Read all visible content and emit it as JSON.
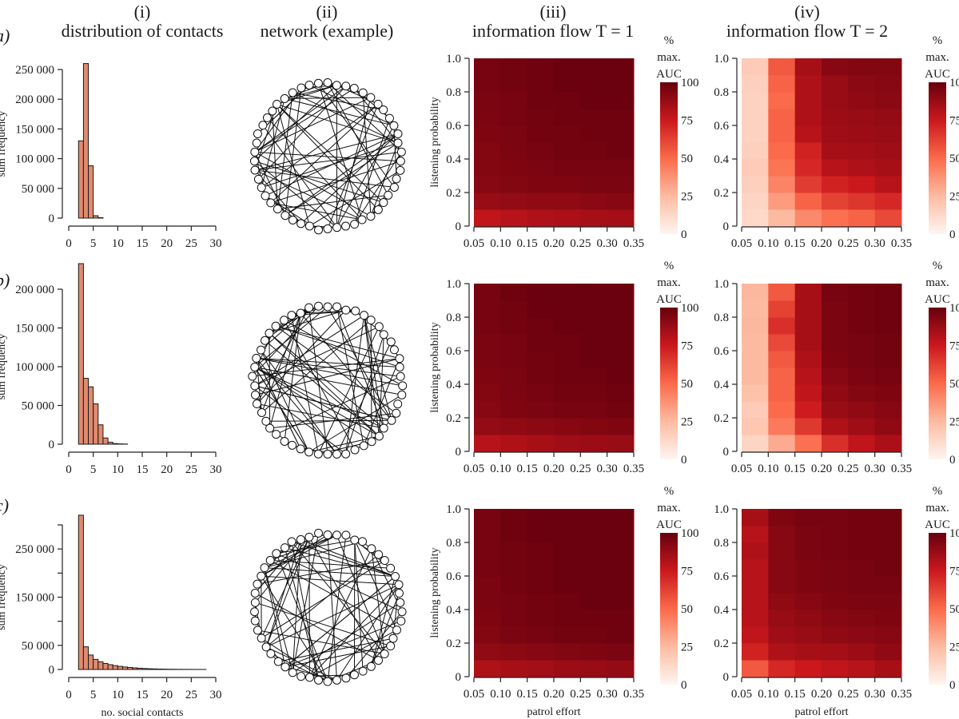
{
  "figure": {
    "column_headers": [
      {
        "numeral": "(i)",
        "title": "distribution of contacts"
      },
      {
        "numeral": "(ii)",
        "title": "network (example)"
      },
      {
        "numeral": "(iii)",
        "title": "information flow T = 1"
      },
      {
        "numeral": "(iv)",
        "title": "information flow T = 2"
      }
    ],
    "row_labels": [
      "a)",
      "b)",
      "c)"
    ],
    "colorbar": {
      "title_lines": [
        "%",
        "max.",
        "AUC"
      ],
      "ticks": [
        "100",
        "75",
        "50",
        "25",
        "0"
      ]
    },
    "colors": {
      "bar_fill": "#e08a6e",
      "axis": "#222222"
    }
  },
  "chart_data": [
    {
      "panel": "a-i",
      "type": "bar",
      "title": "distribution of contacts",
      "xlabel": "",
      "ylabel": "sum frequency",
      "xlim": [
        0,
        30
      ],
      "ylim": [
        0,
        250000
      ],
      "xticks": [
        "0",
        "5",
        "10",
        "15",
        "20",
        "25",
        "30"
      ],
      "yticks": [
        "0",
        "50 000",
        "100 000",
        "150 000",
        "200 000",
        "250 000"
      ],
      "bins_start": 2,
      "values": [
        130000,
        260000,
        88000,
        4000,
        800
      ]
    },
    {
      "panel": "b-i",
      "type": "bar",
      "title": "",
      "xlabel": "",
      "ylabel": "sum frequency",
      "xlim": [
        0,
        30
      ],
      "ylim": [
        0,
        200000
      ],
      "xticks": [
        "0",
        "5",
        "10",
        "15",
        "20",
        "25",
        "30"
      ],
      "yticks": [
        "0",
        "50 000",
        "100 000",
        "150 000",
        "200 000"
      ],
      "bins_start": 2,
      "values": [
        233000,
        85000,
        74000,
        52000,
        25000,
        8000,
        2500,
        800,
        400,
        200
      ]
    },
    {
      "panel": "c-i",
      "type": "bar",
      "title": "",
      "xlabel": "no. social contacts",
      "ylabel": "sum frequency",
      "xlim": [
        0,
        30
      ],
      "ylim": [
        0,
        300000
      ],
      "xticks": [
        "0",
        "5",
        "10",
        "15",
        "20",
        "25",
        "30"
      ],
      "yticks": [
        "0",
        "50 000",
        "",
        "150 000",
        "",
        "250 000",
        ""
      ],
      "ytick_values": [
        0,
        50000,
        100000,
        150000,
        200000,
        250000,
        300000
      ],
      "bins_start": 2,
      "values": [
        320000,
        47000,
        30000,
        21000,
        16000,
        12500,
        10000,
        8000,
        6500,
        5200,
        4200,
        3300,
        2600,
        2000,
        1500,
        1200,
        900,
        700,
        500,
        400,
        300,
        250,
        200,
        150,
        100,
        80
      ]
    },
    {
      "panel": "a-iii",
      "type": "heatmap",
      "title": "information flow T = 1",
      "xlabel": "",
      "ylabel": "listening probability",
      "x": [
        0.05,
        0.1,
        0.15,
        0.2,
        0.25,
        0.3
      ],
      "x_edge_max": 0.35,
      "y": [
        0.0,
        0.1,
        0.2,
        0.3,
        0.4,
        0.5,
        0.6,
        0.7,
        0.8,
        0.9
      ],
      "xticks": [
        "0.05",
        "0.10",
        "0.15",
        "0.20",
        "0.25",
        "0.30",
        "0.35"
      ],
      "yticks": [
        "0",
        "0.2",
        "0.4",
        "0.6",
        "0.8",
        "1.0"
      ],
      "zlim": [
        0,
        100
      ],
      "z_rows_bottom_to_top": [
        [
          78,
          80,
          82,
          83,
          84,
          85
        ],
        [
          88,
          89,
          90,
          90,
          91,
          92
        ],
        [
          92,
          93,
          94,
          94,
          95,
          95
        ],
        [
          93,
          94,
          95,
          96,
          96,
          96
        ],
        [
          93,
          95,
          96,
          97,
          97,
          98
        ],
        [
          94,
          95,
          97,
          97,
          98,
          98
        ],
        [
          95,
          96,
          97,
          98,
          98,
          98
        ],
        [
          95,
          96,
          98,
          98,
          99,
          99
        ],
        [
          96,
          97,
          98,
          99,
          99,
          99
        ],
        [
          96,
          97,
          98,
          99,
          99,
          99
        ]
      ]
    },
    {
      "panel": "a-iv",
      "type": "heatmap",
      "title": "information flow T = 2",
      "xlabel": "",
      "ylabel": "",
      "x": [
        0.05,
        0.1,
        0.15,
        0.2,
        0.25,
        0.3
      ],
      "x_edge_max": 0.35,
      "y": [
        0.0,
        0.1,
        0.2,
        0.3,
        0.4,
        0.5,
        0.6,
        0.7,
        0.8,
        0.9
      ],
      "xticks": [
        "0.05",
        "0.10",
        "0.15",
        "0.20",
        "0.25",
        "0.30",
        "0.35"
      ],
      "yticks": [
        "0",
        "0.2",
        "0.4",
        "0.6",
        "0.8",
        "1.0"
      ],
      "zlim": [
        0,
        100
      ],
      "z_rows_bottom_to_top": [
        [
          12,
          25,
          40,
          48,
          52,
          60
        ],
        [
          14,
          35,
          52,
          62,
          66,
          70
        ],
        [
          16,
          42,
          64,
          72,
          75,
          80
        ],
        [
          18,
          47,
          70,
          80,
          82,
          84
        ],
        [
          16,
          50,
          72,
          84,
          85,
          86
        ],
        [
          15,
          52,
          80,
          86,
          87,
          88
        ],
        [
          15,
          52,
          82,
          87,
          88,
          89
        ],
        [
          15,
          50,
          82,
          88,
          90,
          91
        ],
        [
          16,
          52,
          82,
          88,
          91,
          92
        ],
        [
          18,
          55,
          84,
          92,
          93,
          93
        ]
      ]
    },
    {
      "panel": "b-iii",
      "type": "heatmap",
      "title": "",
      "xlabel": "",
      "ylabel": "listening probability",
      "x": [
        0.05,
        0.1,
        0.15,
        0.2,
        0.25,
        0.3
      ],
      "x_edge_max": 0.35,
      "y": [
        0.0,
        0.1,
        0.2,
        0.3,
        0.4,
        0.5,
        0.6,
        0.7,
        0.8,
        0.9
      ],
      "xticks": [
        "0.05",
        "0.10",
        "0.15",
        "0.20",
        "0.25",
        "0.30",
        "0.35"
      ],
      "yticks": [
        "0",
        "0.2",
        "0.4",
        "0.6",
        "0.8",
        "1.0"
      ],
      "zlim": [
        0,
        100
      ],
      "z_rows_bottom_to_top": [
        [
          80,
          82,
          84,
          86,
          87,
          88
        ],
        [
          89,
          90,
          91,
          92,
          93,
          94
        ],
        [
          92,
          94,
          95,
          96,
          96,
          97
        ],
        [
          93,
          95,
          96,
          97,
          97,
          98
        ],
        [
          94,
          95,
          97,
          98,
          98,
          99
        ],
        [
          95,
          96,
          97,
          98,
          99,
          99
        ],
        [
          95,
          96,
          98,
          98,
          99,
          99
        ],
        [
          96,
          97,
          98,
          99,
          99,
          99
        ],
        [
          96,
          97,
          99,
          99,
          99,
          99
        ],
        [
          96,
          98,
          99,
          99,
          99,
          99
        ]
      ]
    },
    {
      "panel": "b-iv",
      "type": "heatmap",
      "title": "",
      "xlabel": "",
      "ylabel": "",
      "x": [
        0.05,
        0.1,
        0.15,
        0.2,
        0.25,
        0.3
      ],
      "x_edge_max": 0.35,
      "y": [
        0.0,
        0.1,
        0.2,
        0.3,
        0.4,
        0.5,
        0.6,
        0.7,
        0.8,
        0.9
      ],
      "xticks": [
        "0.05",
        "0.10",
        "0.15",
        "0.20",
        "0.25",
        "0.30",
        "0.35"
      ],
      "yticks": [
        "0",
        "0.2",
        "0.4",
        "0.6",
        "0.8",
        "1.0"
      ],
      "zlim": [
        0,
        100
      ],
      "z_rows_bottom_to_top": [
        [
          14,
          30,
          48,
          68,
          78,
          83
        ],
        [
          20,
          45,
          65,
          82,
          86,
          90
        ],
        [
          18,
          50,
          74,
          88,
          90,
          92
        ],
        [
          22,
          52,
          78,
          90,
          93,
          94
        ],
        [
          25,
          52,
          80,
          92,
          95,
          96
        ],
        [
          25,
          55,
          82,
          94,
          96,
          97
        ],
        [
          25,
          60,
          84,
          95,
          96,
          97
        ],
        [
          26,
          68,
          84,
          95,
          97,
          98
        ],
        [
          25,
          62,
          84,
          95,
          97,
          98
        ],
        [
          26,
          55,
          84,
          96,
          97,
          98
        ]
      ]
    },
    {
      "panel": "c-iii",
      "type": "heatmap",
      "title": "",
      "xlabel": "patrol effort",
      "ylabel": "listening probability",
      "x": [
        0.05,
        0.1,
        0.15,
        0.2,
        0.25,
        0.3
      ],
      "x_edge_max": 0.35,
      "y": [
        0.0,
        0.1,
        0.2,
        0.3,
        0.4,
        0.5,
        0.6,
        0.7,
        0.8,
        0.9
      ],
      "xticks": [
        "0.05",
        "0.10",
        "0.15",
        "0.20",
        "0.25",
        "0.30",
        "0.35"
      ],
      "yticks": [
        "0",
        "0.2",
        "0.4",
        "0.6",
        "0.8",
        "1.0"
      ],
      "zlim": [
        0,
        100
      ],
      "z_rows_bottom_to_top": [
        [
          82,
          84,
          85,
          87,
          88,
          89
        ],
        [
          90,
          91,
          92,
          93,
          94,
          95
        ],
        [
          93,
          95,
          96,
          97,
          97,
          98
        ],
        [
          94,
          96,
          97,
          98,
          98,
          98
        ],
        [
          95,
          96,
          97,
          98,
          99,
          99
        ],
        [
          95,
          97,
          98,
          99,
          99,
          99
        ],
        [
          96,
          97,
          98,
          99,
          99,
          99
        ],
        [
          96,
          97,
          98,
          99,
          99,
          99
        ],
        [
          96,
          98,
          99,
          99,
          99,
          99
        ],
        [
          96,
          98,
          99,
          99,
          99,
          99
        ]
      ]
    },
    {
      "panel": "c-iv",
      "type": "heatmap",
      "title": "",
      "xlabel": "patrol effort",
      "ylabel": "",
      "x": [
        0.05,
        0.1,
        0.15,
        0.2,
        0.25,
        0.3
      ],
      "x_edge_max": 0.35,
      "y": [
        0.0,
        0.1,
        0.2,
        0.3,
        0.4,
        0.5,
        0.6,
        0.7,
        0.8,
        0.9
      ],
      "xticks": [
        "0.05",
        "0.10",
        "0.15",
        "0.20",
        "0.25",
        "0.30",
        "0.35"
      ],
      "yticks": [
        "0",
        "0.2",
        "0.4",
        "0.6",
        "0.8",
        "1.0"
      ],
      "zlim": [
        0,
        100
      ],
      "z_rows_bottom_to_top": [
        [
          55,
          70,
          75,
          78,
          80,
          84
        ],
        [
          72,
          82,
          84,
          85,
          87,
          90
        ],
        [
          78,
          86,
          88,
          90,
          91,
          92
        ],
        [
          80,
          88,
          90,
          92,
          93,
          94
        ],
        [
          80,
          90,
          92,
          94,
          95,
          95
        ],
        [
          80,
          92,
          94,
          95,
          96,
          96
        ],
        [
          80,
          92,
          94,
          95,
          96,
          97
        ],
        [
          82,
          92,
          95,
          96,
          97,
          97
        ],
        [
          80,
          92,
          95,
          96,
          97,
          97
        ],
        [
          84,
          94,
          96,
          96,
          97,
          97
        ]
      ]
    },
    {
      "panel": "a-ii",
      "type": "network",
      "nodes": 50,
      "edges": 85
    },
    {
      "panel": "b-ii",
      "type": "network",
      "nodes": 50,
      "edges": 90
    },
    {
      "panel": "c-ii",
      "type": "network",
      "nodes": 50,
      "edges": 85
    }
  ]
}
